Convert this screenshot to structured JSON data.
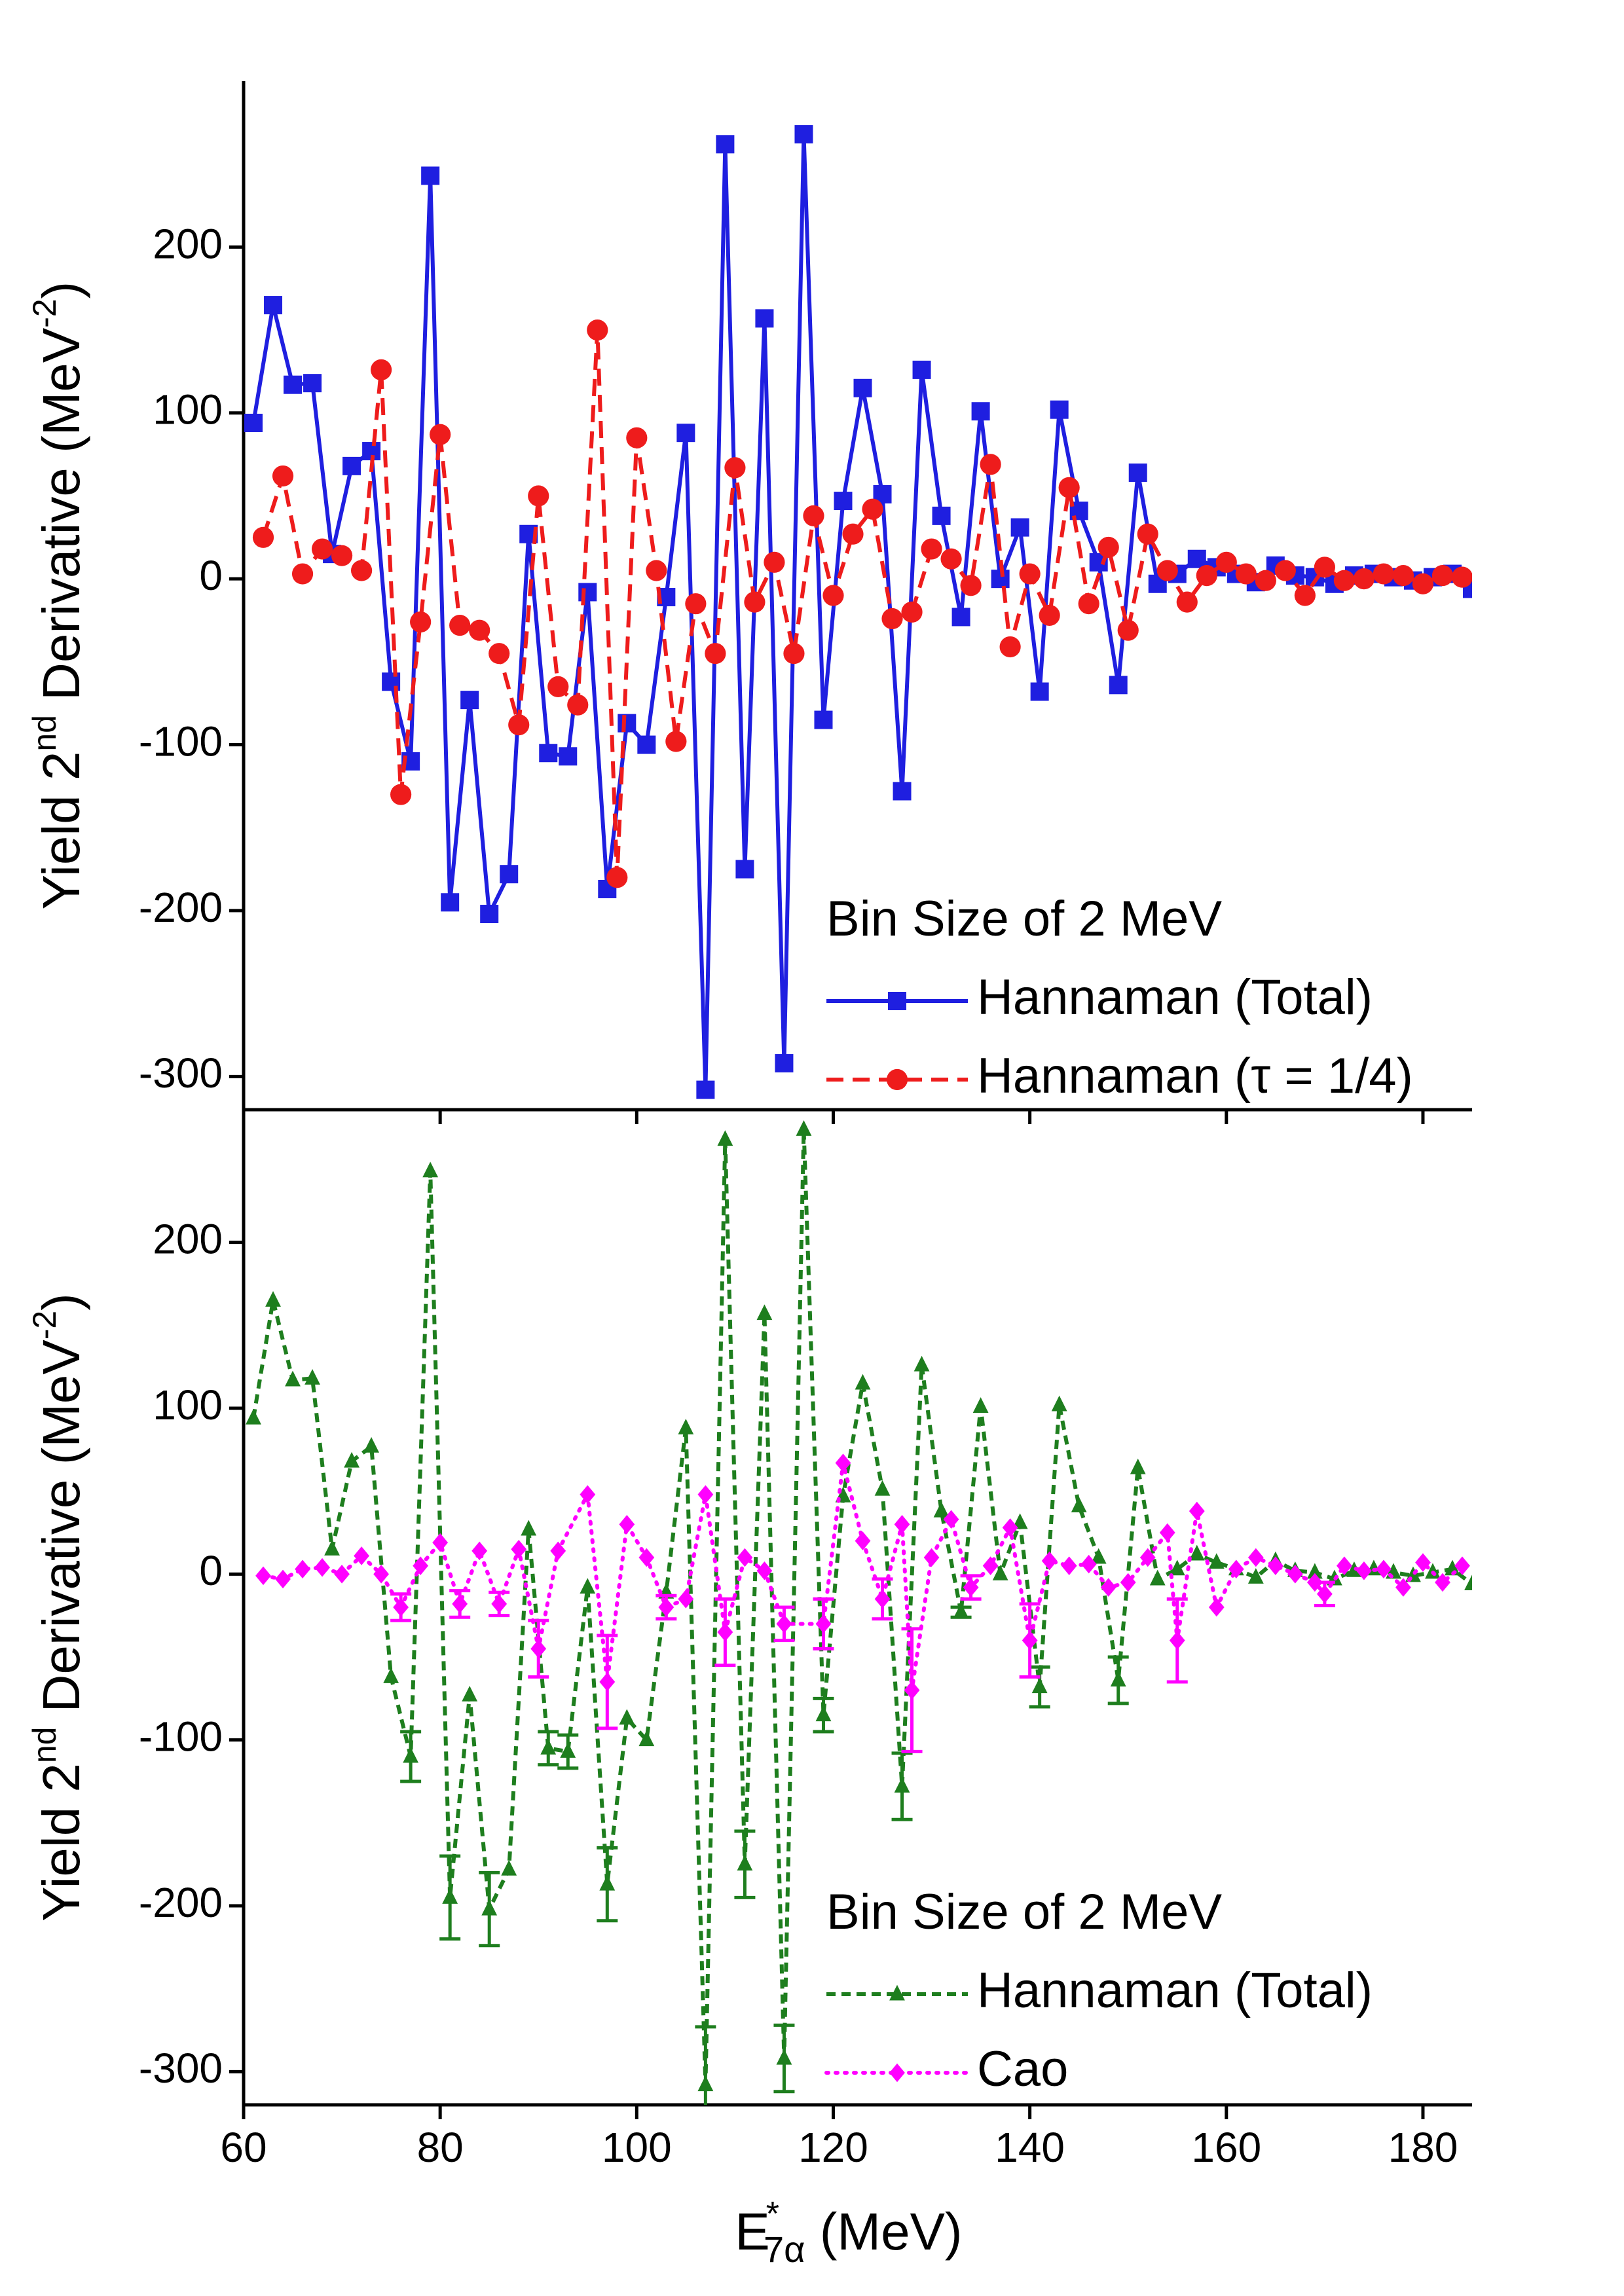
{
  "chart_data": [
    {
      "type": "line",
      "ylabel": [
        "Yield 2",
        "nd",
        " Derivative (MeV",
        "-2",
        ")"
      ],
      "legend_title": "Bin Size of 2 MeV",
      "xlim": [
        60,
        185
      ],
      "ylim": [
        -320,
        300
      ],
      "yticks": [
        -300,
        -200,
        -100,
        0,
        100,
        200
      ],
      "series": [
        {
          "name": "Hannaman (Total)",
          "color": "#1f1fe0",
          "marker": "square",
          "dash": "solid",
          "x": [
            61,
            63,
            65,
            67,
            69,
            71,
            73,
            75,
            77,
            79,
            81,
            83,
            85,
            87,
            89,
            91,
            93,
            95,
            97,
            99,
            101,
            103,
            105,
            107,
            109,
            111,
            113,
            115,
            117,
            119,
            121,
            123,
            125,
            127,
            129,
            131,
            133,
            135,
            137,
            139,
            141,
            143,
            145,
            147,
            149,
            151,
            153,
            155,
            157,
            159,
            161,
            163,
            165,
            167,
            169,
            171,
            173,
            175,
            177,
            179,
            181,
            183,
            185
          ],
          "values": [
            94,
            165,
            117,
            118,
            15,
            68,
            77,
            -62,
            -110,
            243,
            -195,
            -73,
            -202,
            -178,
            27,
            -105,
            -107,
            -8,
            -187,
            -87,
            -100,
            -11,
            88,
            -308,
            262,
            -175,
            157,
            -292,
            268,
            -85,
            47,
            115,
            51,
            -128,
            126,
            38,
            -23,
            101,
            0,
            31,
            -68,
            102,
            41,
            10,
            -64,
            64,
            -3,
            3,
            12,
            7,
            3,
            -2,
            8,
            2,
            1,
            -3,
            2,
            3,
            1,
            -1,
            1,
            3,
            -6
          ]
        },
        {
          "name": "Hannaman (τ = 1/4)",
          "color": "#ee1c1c",
          "marker": "circle",
          "dash": "dashed",
          "x": [
            62,
            64,
            66,
            68,
            70,
            72,
            74,
            76,
            78,
            80,
            82,
            84,
            86,
            88,
            90,
            92,
            94,
            96,
            98,
            100,
            102,
            104,
            106,
            108,
            110,
            112,
            114,
            116,
            118,
            120,
            122,
            124,
            126,
            128,
            130,
            132,
            134,
            136,
            138,
            140,
            142,
            144,
            146,
            148,
            150,
            152,
            154,
            156,
            158,
            160,
            162,
            164,
            166,
            168,
            170,
            172,
            174,
            176,
            178,
            180,
            182,
            184
          ],
          "values": [
            25,
            62,
            3,
            18,
            14,
            5,
            126,
            -130,
            -26,
            87,
            -28,
            -31,
            -45,
            -88,
            50,
            -65,
            -76,
            150,
            -180,
            85,
            5,
            -98,
            -15,
            -45,
            67,
            -14,
            10,
            -45,
            38,
            -10,
            27,
            42,
            -24,
            -20,
            18,
            12,
            -4,
            69,
            -41,
            3,
            -22,
            55,
            -15,
            19,
            -31,
            27,
            5,
            -14,
            2,
            10,
            3,
            -1,
            5,
            -10,
            7,
            -1,
            0,
            3,
            2,
            -3,
            2,
            1
          ]
        }
      ]
    },
    {
      "type": "line",
      "ylabel": [
        "Yield 2",
        "nd",
        " Derivative (MeV",
        "-2",
        ")"
      ],
      "xlabel": [
        "E",
        "*",
        "7α",
        " (MeV)"
      ],
      "legend_title": "Bin Size of 2 MeV",
      "xlim": [
        60,
        185
      ],
      "ylim": [
        -320,
        280
      ],
      "xticks": [
        60,
        80,
        100,
        120,
        140,
        160,
        180
      ],
      "yticks": [
        -300,
        -200,
        -100,
        0,
        100,
        200
      ],
      "series": [
        {
          "name": "Hannaman (Total)",
          "color": "#1e7e1e",
          "marker": "triangle",
          "dash": "short",
          "x": [
            61,
            63,
            65,
            67,
            69,
            71,
            73,
            75,
            77,
            79,
            81,
            83,
            85,
            87,
            89,
            91,
            93,
            95,
            97,
            99,
            101,
            103,
            105,
            107,
            109,
            111,
            113,
            115,
            117,
            119,
            121,
            123,
            125,
            127,
            129,
            131,
            133,
            135,
            137,
            139,
            141,
            143,
            145,
            147,
            149,
            151,
            153,
            155,
            157,
            159,
            161,
            163,
            165,
            167,
            169,
            171,
            173,
            175,
            177,
            179,
            181,
            183,
            185
          ],
          "values": [
            94,
            165,
            117,
            118,
            15,
            68,
            77,
            -62,
            -110,
            243,
            -195,
            -73,
            -202,
            -178,
            27,
            -105,
            -107,
            -8,
            -187,
            -87,
            -100,
            -11,
            88,
            -308,
            262,
            -175,
            157,
            -292,
            268,
            -85,
            47,
            115,
            51,
            -128,
            126,
            38,
            -23,
            101,
            0,
            31,
            -68,
            102,
            41,
            10,
            -64,
            64,
            -3,
            3,
            12,
            7,
            3,
            -2,
            8,
            2,
            1,
            -3,
            2,
            3,
            1,
            -1,
            1,
            3,
            -6
          ],
          "errors": [
            null,
            null,
            null,
            null,
            null,
            null,
            null,
            null,
            15,
            null,
            25,
            null,
            22,
            null,
            null,
            10,
            10,
            null,
            22,
            null,
            null,
            null,
            null,
            35,
            null,
            20,
            null,
            20,
            null,
            10,
            null,
            null,
            null,
            20,
            null,
            null,
            3,
            null,
            null,
            null,
            12,
            null,
            null,
            null,
            14,
            null,
            null,
            null,
            null,
            null,
            null,
            null,
            null,
            null,
            null,
            null,
            null,
            null,
            null,
            null,
            null,
            null,
            null
          ]
        },
        {
          "name": "Cao",
          "color": "#ff00ff",
          "marker": "diamond",
          "dash": "dotted",
          "x": [
            62,
            64,
            66,
            68,
            70,
            72,
            74,
            76,
            78,
            80,
            82,
            84,
            86,
            88,
            90,
            92,
            95,
            97,
            99,
            101,
            103,
            105,
            107,
            109,
            111,
            113,
            115,
            119,
            121,
            123,
            125,
            127,
            128,
            130,
            132,
            134,
            136,
            138,
            140,
            142,
            144,
            146,
            148,
            150,
            152,
            154,
            155,
            157,
            159,
            161,
            163,
            165,
            167,
            169,
            170,
            172,
            174,
            176,
            178,
            180,
            182,
            184
          ],
          "values": [
            -1,
            -3,
            3,
            4,
            0,
            11,
            0,
            -20,
            5,
            19,
            -18,
            14,
            -18,
            15,
            -45,
            14,
            48,
            -65,
            30,
            10,
            -20,
            -15,
            48,
            -35,
            10,
            2,
            -30,
            -30,
            67,
            20,
            -15,
            30,
            -70,
            10,
            33,
            -8,
            5,
            28,
            -40,
            8,
            5,
            6,
            -8,
            -5,
            10,
            25,
            -40,
            38,
            -20,
            3,
            10,
            5,
            0,
            -5,
            -12,
            5,
            2,
            3,
            -8,
            7,
            -5,
            5
          ],
          "errors": [
            null,
            null,
            null,
            null,
            null,
            null,
            null,
            8,
            null,
            null,
            8,
            null,
            7,
            null,
            17,
            null,
            null,
            28,
            null,
            null,
            7,
            null,
            null,
            20,
            null,
            null,
            10,
            15,
            null,
            null,
            12,
            null,
            37,
            null,
            null,
            7,
            null,
            null,
            22,
            null,
            null,
            null,
            null,
            null,
            null,
            null,
            25,
            null,
            null,
            null,
            null,
            null,
            null,
            null,
            7,
            null,
            null,
            null,
            null,
            null,
            null,
            null
          ]
        }
      ]
    }
  ]
}
